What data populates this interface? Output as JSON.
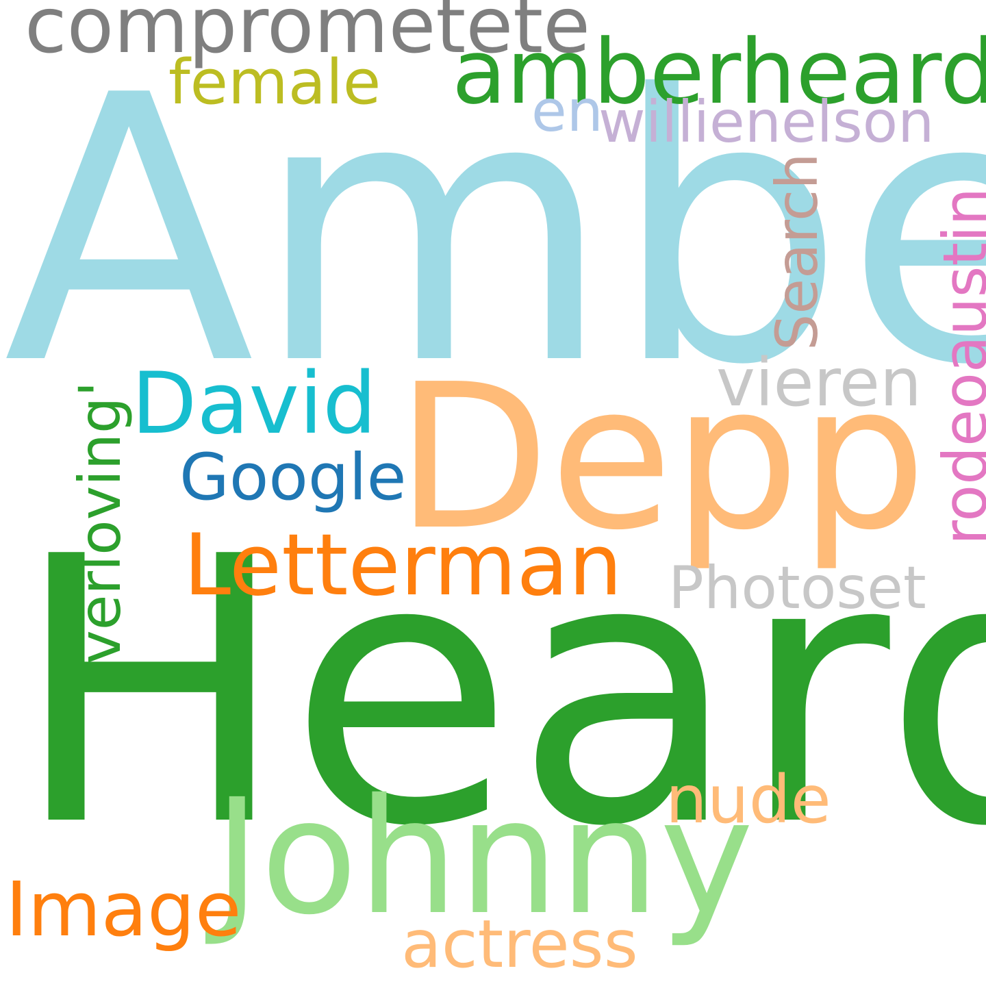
{
  "word_cloud": {
    "words": [
      {
        "text": "Amber",
        "color": "#9edae5"
      },
      {
        "text": "Heard",
        "color": "#2ca02c"
      },
      {
        "text": "Depp",
        "color": "#ffbb78"
      },
      {
        "text": "Johnny",
        "color": "#98df8a"
      },
      {
        "text": "amberheard",
        "color": "#2ca02c"
      },
      {
        "text": "comprometete",
        "color": "#7f7f7f"
      },
      {
        "text": "Letterman",
        "color": "#ff7f0e"
      },
      {
        "text": "David",
        "color": "#17becf"
      },
      {
        "text": "Image",
        "color": "#ff7f0e"
      },
      {
        "text": "vieren",
        "color": "#c7c7c7"
      },
      {
        "text": "nude",
        "color": "#ffbb78"
      },
      {
        "text": "actress",
        "color": "#ffbb78"
      },
      {
        "text": "Google",
        "color": "#1f77b4"
      },
      {
        "text": "female",
        "color": "#bcbd22"
      },
      {
        "text": "Photoset",
        "color": "#c7c7c7"
      },
      {
        "text": "willienelson",
        "color": "#c5b0d5"
      },
      {
        "text": "en",
        "color": "#aec7e8"
      },
      {
        "text": "verloving'",
        "color": "#2ca02c"
      },
      {
        "text": "rodeoaustin",
        "color": "#e377c2"
      },
      {
        "text": "Search",
        "color": "#c49c94"
      }
    ]
  }
}
